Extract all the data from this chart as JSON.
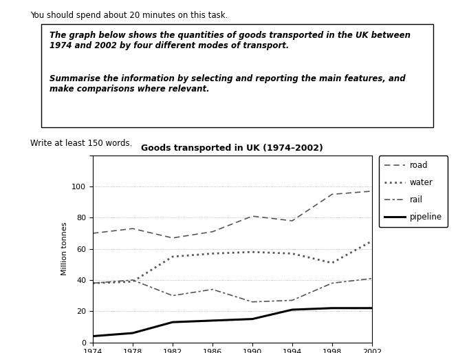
{
  "title": "Goods transported in UK (1974–2002)",
  "ylabel": "Million tonnes",
  "years": [
    1974,
    1978,
    1982,
    1986,
    1990,
    1994,
    1998,
    2002
  ],
  "road": [
    70,
    73,
    67,
    71,
    81,
    78,
    95,
    97
  ],
  "water": [
    38,
    39,
    55,
    57,
    58,
    57,
    51,
    65
  ],
  "rail": [
    38,
    40,
    30,
    34,
    26,
    27,
    38,
    41
  ],
  "pipeline": [
    4,
    6,
    13,
    14,
    15,
    21,
    22,
    22
  ],
  "header_text1": "The graph below shows the quantities of goods transported in the UK between\n1974 and 2002 by four different modes of transport.",
  "header_text2": "Summarise the information by selecting and reporting the main features, and\nmake comparisons where relevant.",
  "top_note": "You should spend about 20 minutes on this task.",
  "bottom_note": "Write at least 150 words.",
  "background_color": "#ffffff",
  "grid_color": "#aaaaaa",
  "line_color": "#555555",
  "pipeline_color": "#000000",
  "ylim": [
    0,
    120
  ],
  "yticks": [
    0,
    20,
    40,
    60,
    80,
    100,
    120
  ]
}
